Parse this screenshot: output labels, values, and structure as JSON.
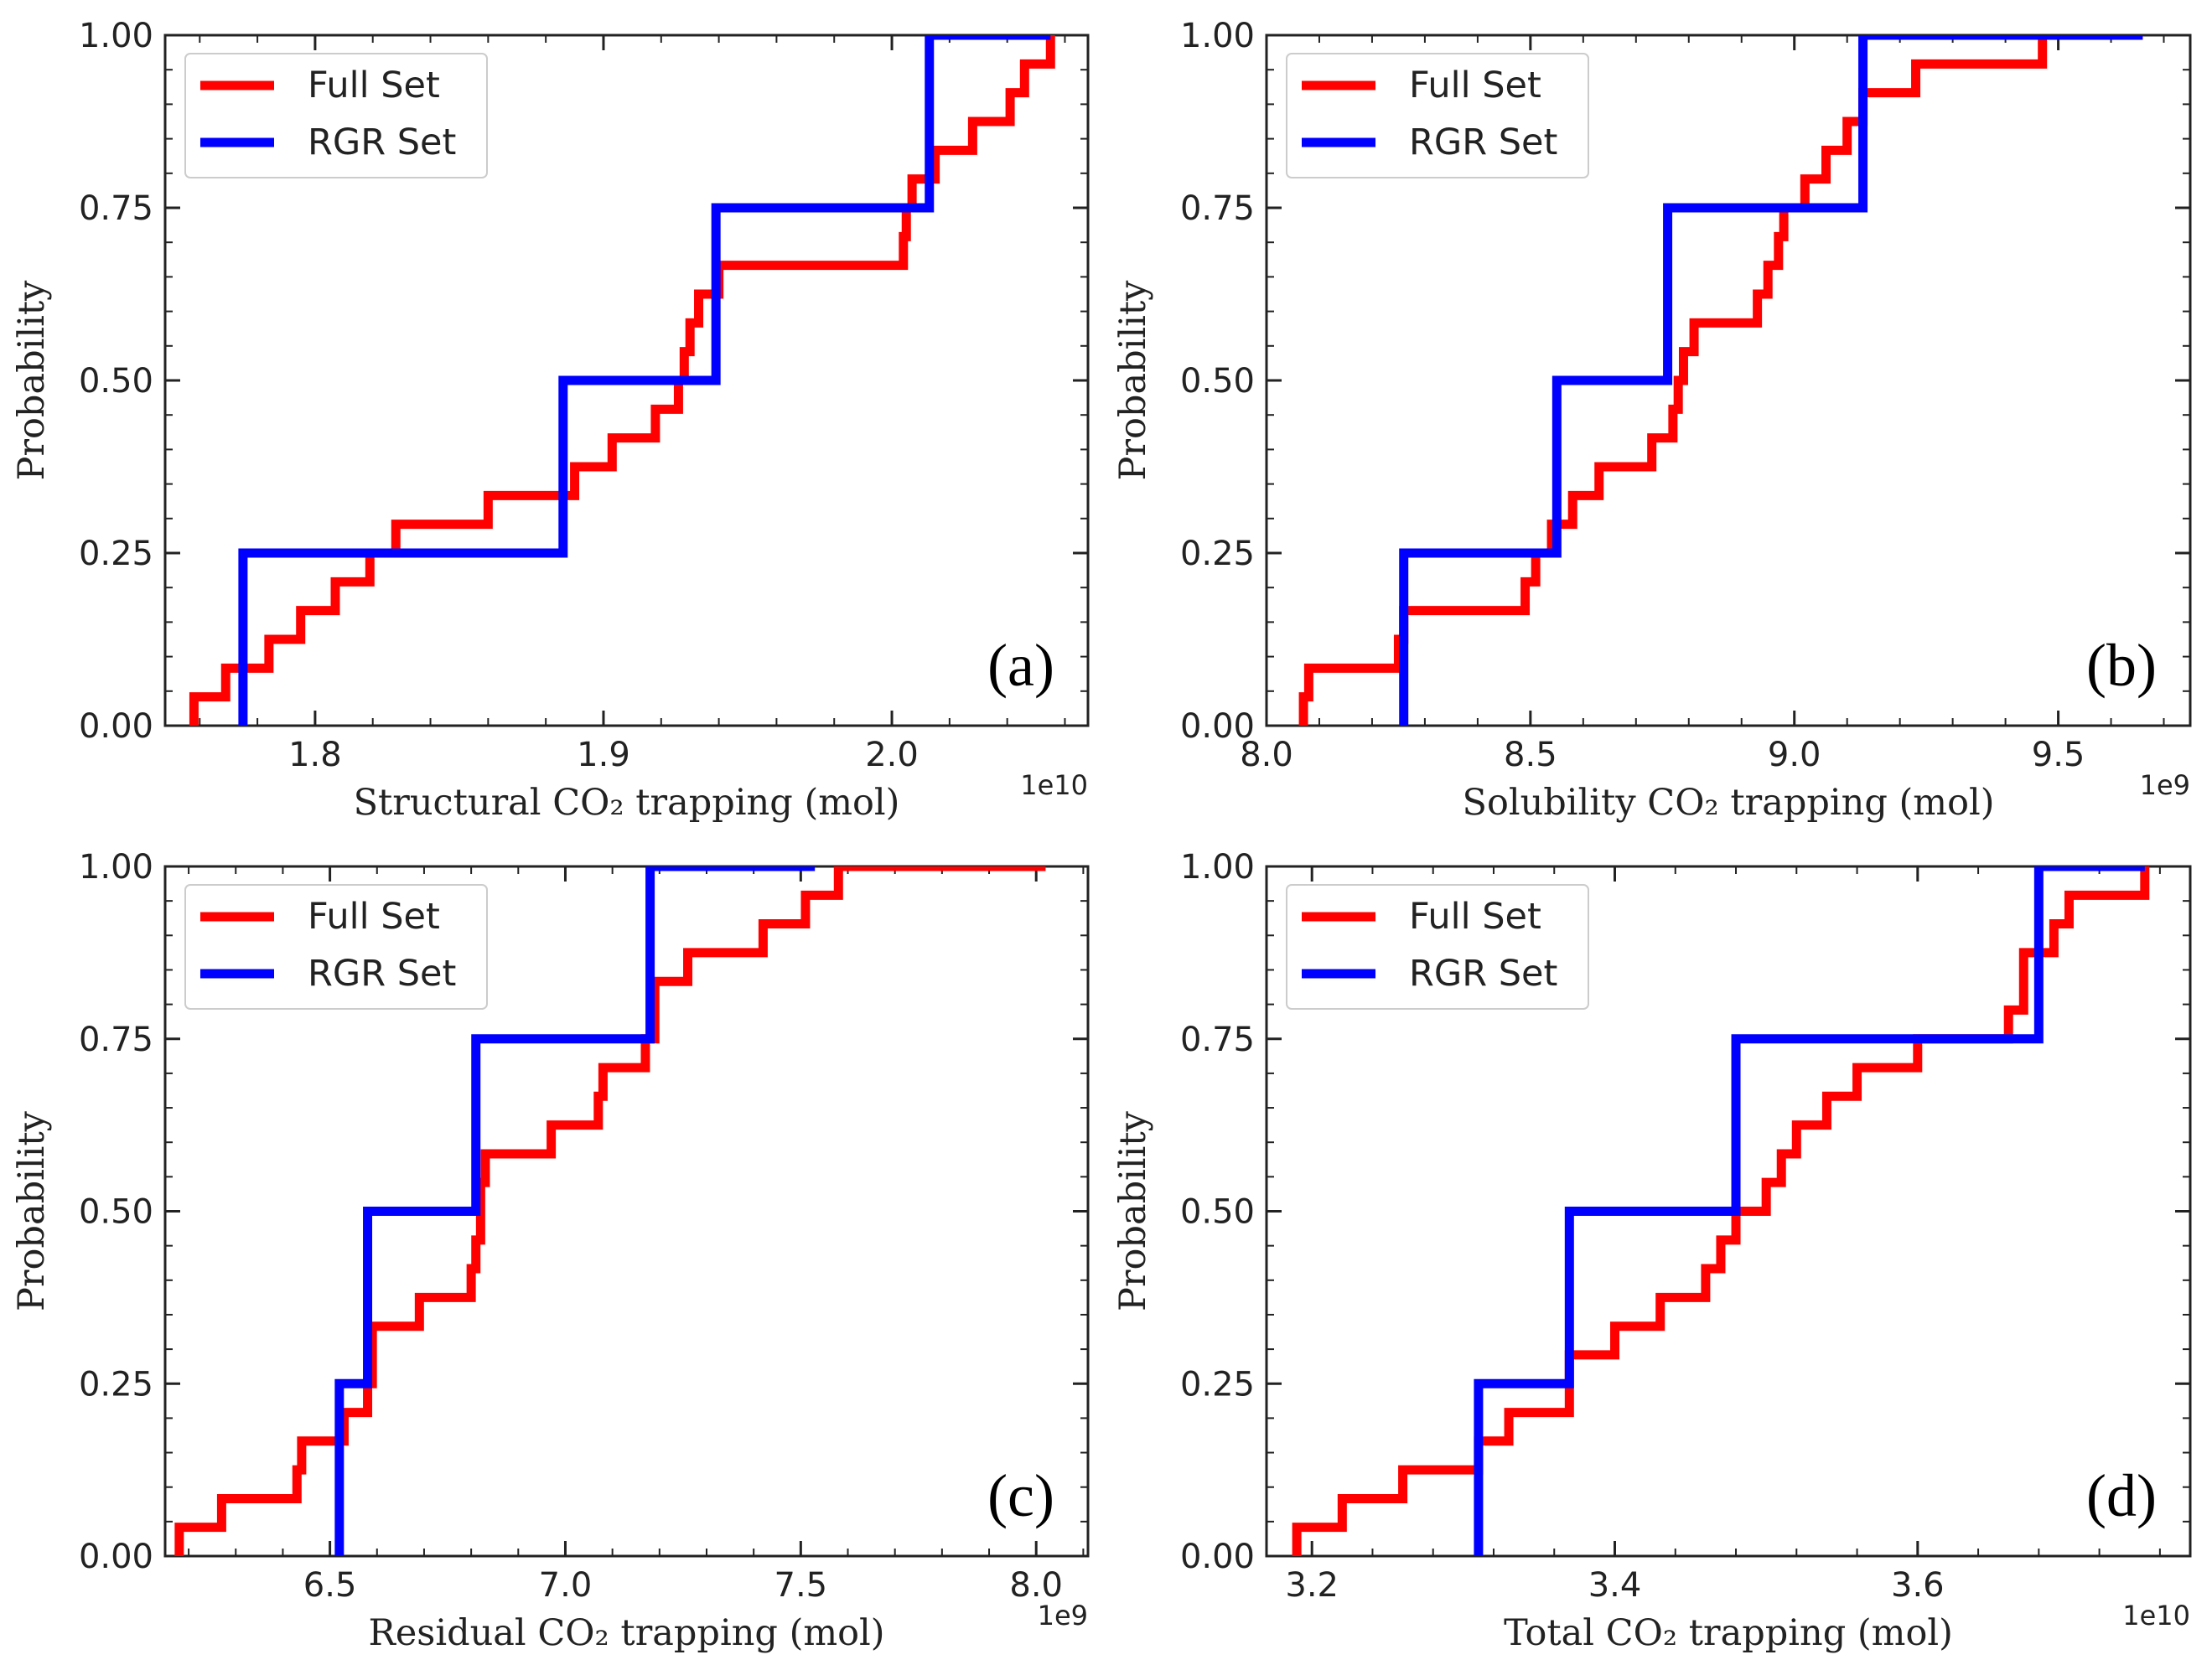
{
  "chart_data": [
    {
      "type": "line",
      "step": true,
      "panel": "(a)",
      "xlabel": "Structural CO₂ trapping (mol)",
      "ylabel": "Probability",
      "offset_label": "1e10",
      "xlim": [
        1.748,
        2.068
      ],
      "ylim": [
        0,
        1
      ],
      "xticks": [
        1.8,
        1.9,
        2.0
      ],
      "xtick_labels": [
        "1.8",
        "1.9",
        "2.0"
      ],
      "yticks": [
        0,
        0.25,
        0.5,
        0.75,
        1.0
      ],
      "ytick_labels": [
        "0.00",
        "0.25",
        "0.50",
        "0.75",
        "1.00"
      ],
      "legend": [
        "Full Set",
        "RGR Set"
      ],
      "legend_position": "top-left",
      "series": [
        {
          "name": "Full Set",
          "color": "#ff0000",
          "x": [
            1.758,
            1.769,
            1.775,
            1.784,
            1.795,
            1.807,
            1.811,
            1.819,
            1.828,
            1.84,
            1.86,
            1.871,
            1.89,
            1.903,
            1.918,
            1.926,
            1.928,
            1.929,
            1.93,
            1.931,
            1.933,
            1.94,
            2.003,
            2.004,
            2.005,
            2.007,
            2.011,
            2.015,
            2.018,
            2.022,
            2.028,
            2.041,
            2.043,
            2.046,
            2.047,
            2.054,
            2.055
          ],
          "y": [
            0.0417,
            0.0833,
            0.0833,
            0.125,
            0.1667,
            0.2083,
            0.2083,
            0.25,
            0.2917,
            0.2917,
            0.3333,
            0.3333,
            0.375,
            0.4167,
            0.4583,
            0.5,
            0.5417,
            0.5417,
            0.5833,
            0.5833,
            0.625,
            0.6667,
            0.6667,
            0.7083,
            0.75,
            0.7917,
            0.7917,
            0.8333,
            0.8333,
            0.8333,
            0.875,
            0.9167,
            0.9167,
            0.9583,
            0.9583,
            0.9583,
            1.0
          ]
        },
        {
          "name": "RGR Set",
          "color": "#0000ff",
          "x": [
            1.775,
            1.886,
            1.939,
            2.013,
            2.055
          ],
          "y": [
            0.25,
            0.5,
            0.75,
            1.0,
            1.0
          ]
        }
      ]
    },
    {
      "type": "line",
      "step": true,
      "panel": "(b)",
      "xlabel": "Solubility CO₂ trapping (mol)",
      "ylabel": "Probability",
      "offset_label": "1e9",
      "xlim": [
        8.0,
        9.75
      ],
      "ylim": [
        0,
        1
      ],
      "xticks": [
        8.0,
        8.5,
        9.0,
        9.5
      ],
      "xtick_labels": [
        "8.0",
        "8.5",
        "9.0",
        "9.5"
      ],
      "yticks": [
        0,
        0.25,
        0.5,
        0.75,
        1.0
      ],
      "ytick_labels": [
        "0.00",
        "0.25",
        "0.50",
        "0.75",
        "1.00"
      ],
      "legend": [
        "Full Set",
        "RGR Set"
      ],
      "legend_position": "top-left",
      "series": [
        {
          "name": "Full Set",
          "color": "#ff0000",
          "x": [
            8.07,
            8.08,
            8.08,
            8.25,
            8.26,
            8.26,
            8.49,
            8.51,
            8.54,
            8.58,
            8.6,
            8.63,
            8.73,
            8.77,
            8.78,
            8.79,
            8.81,
            8.93,
            8.95,
            8.97,
            8.98,
            9.02,
            9.06,
            9.1,
            9.13,
            9.23,
            9.47,
            9.66
          ],
          "y": [
            0.0417,
            0.0833,
            0.0833,
            0.125,
            0.1667,
            0.1667,
            0.2083,
            0.25,
            0.2917,
            0.3333,
            0.3333,
            0.375,
            0.4167,
            0.4583,
            0.5,
            0.5417,
            0.5833,
            0.625,
            0.6667,
            0.7083,
            0.75,
            0.7917,
            0.8333,
            0.875,
            0.9167,
            0.9583,
            1.0,
            1.0
          ]
        },
        {
          "name": "RGR Set",
          "color": "#0000ff",
          "x": [
            8.26,
            8.55,
            8.76,
            9.13,
            9.66
          ],
          "y": [
            0.25,
            0.5,
            0.75,
            1.0,
            1.0
          ]
        }
      ]
    },
    {
      "type": "line",
      "step": true,
      "panel": "(c)",
      "xlabel": "Residual CO₂ trapping (mol)",
      "ylabel": "Probability",
      "offset_label": "1e9",
      "xlim": [
        6.15,
        8.11
      ],
      "ylim": [
        0,
        1
      ],
      "xticks": [
        6.5,
        7.0,
        7.5,
        8.0
      ],
      "xtick_labels": [
        "6.5",
        "7.0",
        "7.5",
        "8.0"
      ],
      "yticks": [
        0,
        0.25,
        0.5,
        0.75,
        1.0
      ],
      "ytick_labels": [
        "0.00",
        "0.25",
        "0.50",
        "0.75",
        "1.00"
      ],
      "legend": [
        "Full Set",
        "RGR Set"
      ],
      "legend_position": "top-left",
      "series": [
        {
          "name": "Full Set",
          "color": "#ff0000",
          "x": [
            6.18,
            6.27,
            6.43,
            6.44,
            6.53,
            6.58,
            6.59,
            6.69,
            6.8,
            6.81,
            6.82,
            6.83,
            6.97,
            7.07,
            7.08,
            7.17,
            7.19,
            7.26,
            7.42,
            7.51,
            7.56,
            7.58,
            7.59,
            8.02
          ],
          "y": [
            0.0417,
            0.0833,
            0.125,
            0.1667,
            0.2083,
            0.25,
            0.3333,
            0.375,
            0.4167,
            0.4583,
            0.5417,
            0.5833,
            0.625,
            0.6667,
            0.7083,
            0.75,
            0.8333,
            0.875,
            0.9167,
            0.9583,
            0.9583,
            1.0,
            1.0,
            1.0
          ]
        },
        {
          "name": "RGR Set",
          "color": "#0000ff",
          "x": [
            6.52,
            6.58,
            6.81,
            7.18,
            7.53
          ],
          "y": [
            0.25,
            0.5,
            0.75,
            1.0,
            1.0
          ]
        }
      ]
    },
    {
      "type": "line",
      "step": true,
      "panel": "(d)",
      "xlabel": "Total CO₂ trapping (mol)",
      "ylabel": "Probability",
      "offset_label": "1e10",
      "xlim": [
        3.17,
        3.78
      ],
      "ylim": [
        0,
        1
      ],
      "xticks": [
        3.2,
        3.4,
        3.6
      ],
      "xtick_labels": [
        "3.2",
        "3.4",
        "3.6"
      ],
      "yticks": [
        0,
        0.25,
        0.5,
        0.75,
        1.0
      ],
      "ytick_labels": [
        "0.00",
        "0.25",
        "0.50",
        "0.75",
        "1.00"
      ],
      "legend": [
        "Full Set",
        "RGR Set"
      ],
      "legend_position": "top-left",
      "series": [
        {
          "name": "Full Set",
          "color": "#ff0000",
          "x": [
            3.19,
            3.22,
            3.26,
            3.31,
            3.33,
            3.37,
            3.4,
            3.43,
            3.46,
            3.47,
            3.48,
            3.48,
            3.5,
            3.51,
            3.52,
            3.54,
            3.56,
            3.6,
            3.66,
            3.67,
            3.67,
            3.69,
            3.7,
            3.75
          ],
          "y": [
            0.0417,
            0.0833,
            0.125,
            0.1667,
            0.2083,
            0.2917,
            0.3333,
            0.375,
            0.4167,
            0.4583,
            0.4583,
            0.5,
            0.5417,
            0.5833,
            0.625,
            0.6667,
            0.7083,
            0.75,
            0.7917,
            0.8333,
            0.875,
            0.9167,
            0.9583,
            1.0
          ]
        },
        {
          "name": "RGR Set",
          "color": "#0000ff",
          "x": [
            3.31,
            3.37,
            3.48,
            3.68,
            3.75
          ],
          "y": [
            0.25,
            0.5,
            0.75,
            1.0,
            1.0
          ]
        }
      ]
    }
  ]
}
